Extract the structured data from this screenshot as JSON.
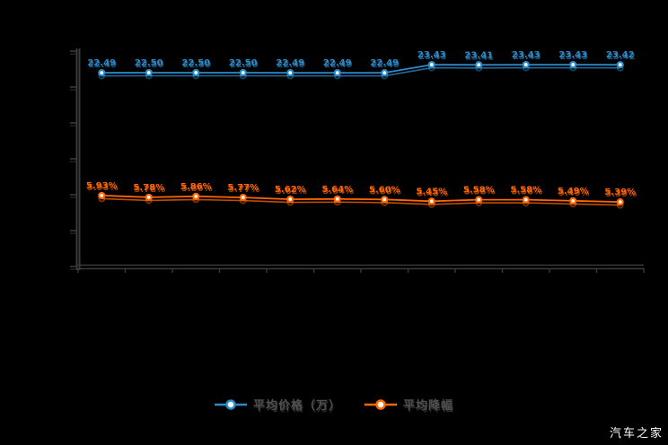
{
  "page": {
    "background": "#000000",
    "watermark": "汽车之家"
  },
  "chart_data": {
    "type": "line",
    "title": "",
    "xlabel": "",
    "ylabel": "",
    "grid": false,
    "x_tick_labels_visible": false,
    "y_tick_labels_visible": false,
    "legend_position": "bottom",
    "colors": {
      "axis": "#3a3a3a",
      "marker_fill": "#ffffff"
    },
    "series": [
      {
        "name": "平均价格（万）",
        "color": "#2b8bc9",
        "ylim": [
          0,
          25
        ],
        "values": [
          22.49,
          22.5,
          22.5,
          22.5,
          22.49,
          22.49,
          22.49,
          23.43,
          23.41,
          23.43,
          23.43,
          23.42
        ],
        "labels": [
          "22.49",
          "22.50",
          "22.50",
          "22.50",
          "22.49",
          "22.49",
          "22.49",
          "23.43",
          "23.41",
          "23.43",
          "23.43",
          "23.42"
        ]
      },
      {
        "name": "平均降幅",
        "color": "#ff6600",
        "ylim": [
          0,
          18
        ],
        "values": [
          5.93,
          5.78,
          5.86,
          5.77,
          5.62,
          5.64,
          5.6,
          5.45,
          5.58,
          5.58,
          5.49,
          5.39
        ],
        "labels": [
          "5.93%",
          "5.78%",
          "5.86%",
          "5.77%",
          "5.62%",
          "5.64%",
          "5.60%",
          "5.45%",
          "5.58%",
          "5.58%",
          "5.49%",
          "5.39%"
        ]
      }
    ]
  }
}
